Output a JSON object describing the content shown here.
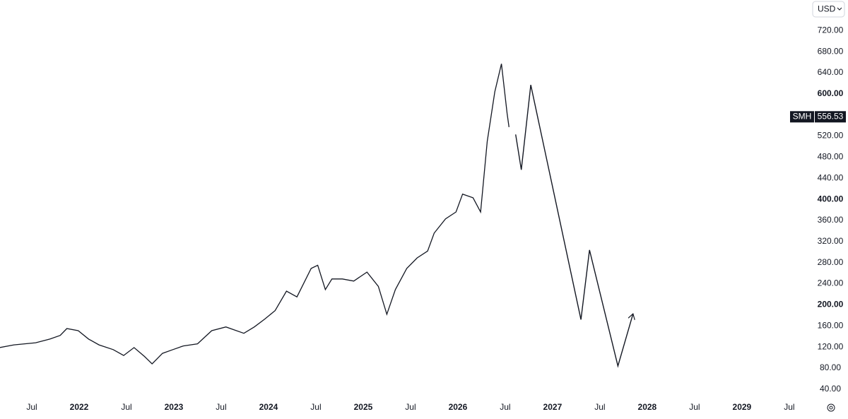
{
  "chart_data": {
    "type": "line",
    "currency": "USD",
    "xlim": [
      2021.164,
      2029.71
    ],
    "xticks": [
      {
        "value": 2021.5,
        "label": "Jul"
      },
      2022,
      {
        "value": 2022.5,
        "label": "Jul"
      },
      2023,
      {
        "value": 2023.5,
        "label": "Jul"
      },
      2024,
      {
        "value": 2024.5,
        "label": "Jul"
      },
      2025,
      {
        "value": 2025.5,
        "label": "Jul"
      },
      2026,
      {
        "value": 2026.5,
        "label": "Jul"
      },
      2027,
      {
        "value": 2027.5,
        "label": "Jul"
      },
      2028,
      {
        "value": 2028.5,
        "label": "Jul"
      },
      2029,
      {
        "value": 2029.5,
        "label": "Jul"
      }
    ],
    "ylim": [
      21,
      778
    ],
    "yticks": [
      {
        "value": 40,
        "label": "40.00"
      },
      {
        "value": 80,
        "label": "80.00"
      },
      {
        "value": 120,
        "label": "120.00"
      },
      {
        "value": 160,
        "label": "160.00"
      },
      {
        "value": 200,
        "label": "200.00"
      },
      {
        "value": 240,
        "label": "240.00"
      },
      {
        "value": 280,
        "label": "280.00"
      },
      {
        "value": 320,
        "label": "320.00"
      },
      {
        "value": 360,
        "label": "360.00"
      },
      {
        "value": 400,
        "label": "400.00"
      },
      {
        "value": 440,
        "label": "440.00"
      },
      {
        "value": 480,
        "label": "480.00"
      },
      {
        "value": 520,
        "label": "520.00"
      },
      {
        "value": 560,
        "label": "560.00"
      },
      {
        "value": 600,
        "label": "600.00"
      },
      {
        "value": 640,
        "label": "640.00"
      },
      {
        "value": 680,
        "label": "680.00"
      },
      {
        "value": 720,
        "label": "720.00"
      }
    ],
    "last_value": 556.53,
    "series": [
      {
        "name": "SMH",
        "color": "#131722",
        "x": [
          2021.16,
          2021.31,
          2021.54,
          2021.69,
          2021.8,
          2021.87,
          2021.99,
          2022.1,
          2022.21,
          2022.36,
          2022.47,
          2022.58,
          2022.69,
          2022.77,
          2022.88,
          2022.99,
          2023.1,
          2023.25,
          2023.4,
          2023.55,
          2023.74,
          2023.85,
          2023.96,
          2024.07,
          2024.19,
          2024.3,
          2024.45,
          2024.52,
          2024.6,
          2024.67,
          2024.78,
          2024.9,
          2025.04,
          2025.16,
          2025.25,
          2025.34,
          2025.46,
          2025.57,
          2025.68,
          2025.75,
          2025.87,
          2025.98,
          2026.05,
          2026.16,
          2026.24,
          2026.31,
          2026.39,
          2026.46,
          2026.52,
          2026.54
        ],
        "values": [
          119,
          124,
          128,
          135,
          142,
          155,
          151,
          135,
          124,
          115,
          104,
          119,
          102,
          88,
          108,
          115,
          122,
          126,
          151,
          158,
          146,
          158,
          173,
          189,
          226,
          215,
          269,
          275,
          229,
          249,
          249,
          245,
          262,
          235,
          182,
          229,
          269,
          289,
          302,
          336,
          363,
          376,
          410,
          403,
          376,
          510,
          604,
          657,
          563,
          537
        ]
      },
      {
        "color": "#131722",
        "x": [
          2026.61,
          2026.67,
          2026.77,
          2027.3,
          2027.39,
          2027.69,
          2027.85
        ],
        "values": [
          523,
          456,
          617,
          172,
          304,
          84,
          183
        ]
      }
    ]
  }
}
